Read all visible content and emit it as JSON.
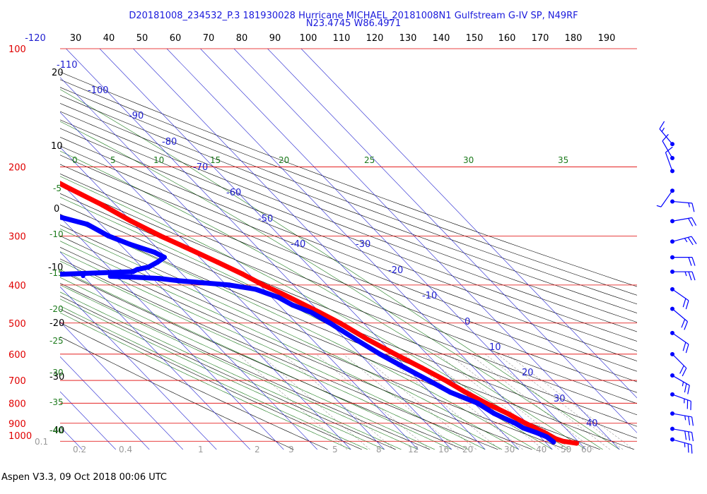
{
  "header": {
    "title_line1": "D20181008_234532_P.3 181930028 Hurricane MICHAEL_20181008N1 Gulfstream G-IV SP, N49RF",
    "title_line2": "N23.4745 W86.4971"
  },
  "footer": {
    "text": "Aspen V3.3, 09 Oct 2018  00:06 UTC"
  },
  "colors": {
    "isobar": "#e00000",
    "isotherm": "#2020d0",
    "dry_adiabat": "#000000",
    "moist_adiabat": "#1c7a1c",
    "mixing_ratio": "#9a9a9a",
    "temperature": "#ff0000",
    "dewpoint": "#0000ff",
    "wind": "#0000ff"
  },
  "chart_data": {
    "type": "skew-t",
    "pressure_levels": [
      100,
      200,
      300,
      400,
      500,
      600,
      700,
      800,
      900,
      1000
    ],
    "top_scale_labels": [
      "-120",
      "30",
      "40",
      "50",
      "60",
      "70",
      "80",
      "90",
      "100",
      "110",
      "120",
      "130",
      "140",
      "150",
      "160",
      "170",
      "180",
      "190"
    ],
    "isotherm_labels": [
      {
        "t": -110,
        "text": "-110"
      },
      {
        "t": -100,
        "text": "-100"
      },
      {
        "t": -90,
        "text": "-90"
      },
      {
        "t": -80,
        "text": "-80"
      },
      {
        "t": -70,
        "text": "-70"
      },
      {
        "t": -60,
        "text": "-60"
      },
      {
        "t": -50,
        "text": "-50"
      },
      {
        "t": -40,
        "text": "-40"
      },
      {
        "t": -30,
        "text": "-30"
      },
      {
        "t": -20,
        "text": "-20"
      },
      {
        "t": -10,
        "text": "-10"
      },
      {
        "t": 0,
        "text": "0"
      },
      {
        "t": 10,
        "text": "10"
      },
      {
        "t": 20,
        "text": "20"
      },
      {
        "t": 30,
        "text": "30"
      },
      {
        "t": 40,
        "text": "40"
      }
    ],
    "dry_adiabat_labels": [
      "20",
      "10",
      "0",
      "-10",
      "-20",
      "-30",
      "-40"
    ],
    "moist_adiabat_labels": [
      "0",
      "5",
      "10",
      "15",
      "20",
      "25",
      "30",
      "35",
      "-5",
      "-10",
      "-15",
      "-20",
      "-25",
      "-30",
      "-35",
      "-40"
    ],
    "mixing_ratio_labels": [
      "0.1",
      "0.2",
      "0.4",
      "1",
      "2",
      "3",
      "5",
      "8",
      "12",
      "16",
      "20",
      "30",
      "40",
      "50",
      "60"
    ],
    "temperature_profile": [
      {
        "p": 1012,
        "t": 29.0
      },
      {
        "p": 1000,
        "t": 25.5
      },
      {
        "p": 985,
        "t": 24.0
      },
      {
        "p": 950,
        "t": 22.5
      },
      {
        "p": 900,
        "t": 19.5
      },
      {
        "p": 850,
        "t": 17.0
      },
      {
        "p": 800,
        "t": 13.5
      },
      {
        "p": 750,
        "t": 10.5
      },
      {
        "p": 700,
        "t": 8.0
      },
      {
        "p": 650,
        "t": 4.5
      },
      {
        "p": 600,
        "t": 0.5
      },
      {
        "p": 550,
        "t": -3.5
      },
      {
        "p": 500,
        "t": -7.0
      },
      {
        "p": 470,
        "t": -10.0
      },
      {
        "p": 440,
        "t": -13.5
      },
      {
        "p": 420,
        "t": -16.0
      },
      {
        "p": 400,
        "t": -19.0
      },
      {
        "p": 375,
        "t": -22.0
      },
      {
        "p": 350,
        "t": -26.0
      },
      {
        "p": 325,
        "t": -30.5
      },
      {
        "p": 300,
        "t": -35.5
      },
      {
        "p": 275,
        "t": -40.0
      },
      {
        "p": 250,
        "t": -44.0
      },
      {
        "p": 225,
        "t": -49.5
      },
      {
        "p": 200,
        "t": -55.0
      },
      {
        "p": 180,
        "t": -58.5
      },
      {
        "p": 162,
        "t": -63.0
      }
    ],
    "temperature_extra_point": {
      "p": 153,
      "t": -68.0
    },
    "dewpoint_profile": [
      {
        "p": 1005,
        "t": 22.5
      },
      {
        "p": 975,
        "t": 22.0
      },
      {
        "p": 950,
        "t": 20.0
      },
      {
        "p": 925,
        "t": 17.5
      },
      {
        "p": 900,
        "t": 16.5
      },
      {
        "p": 850,
        "t": 13.0
      },
      {
        "p": 800,
        "t": 11.0
      },
      {
        "p": 750,
        "t": 6.0
      },
      {
        "p": 700,
        "t": 3.0
      },
      {
        "p": 650,
        "t": -0.5
      },
      {
        "p": 600,
        "t": -4.0
      },
      {
        "p": 550,
        "t": -7.0
      },
      {
        "p": 500,
        "t": -10.0
      },
      {
        "p": 470,
        "t": -12.5
      },
      {
        "p": 450,
        "t": -16.0
      },
      {
        "p": 430,
        "t": -18.0
      },
      {
        "p": 410,
        "t": -22.5
      },
      {
        "p": 400,
        "t": -29.0
      },
      {
        "p": 395,
        "t": -36.0
      },
      {
        "p": 390,
        "t": -43.0
      },
      {
        "p": 385,
        "t": -48.0
      },
      {
        "p": 382,
        "t": -55.0
      },
      {
        "p": 380,
        "t": -62.0
      },
      {
        "p": 379,
        "t": -70.0
      },
      {
        "p": 378,
        "t": -78.0
      },
      {
        "p": 378,
        "t": -86.0
      },
      {
        "p": 370,
        "t": -54.0
      },
      {
        "p": 365,
        "t": -52.0
      },
      {
        "p": 360,
        "t": -48.0
      },
      {
        "p": 350,
        "t": -44.0
      },
      {
        "p": 340,
        "t": -40.5
      },
      {
        "p": 330,
        "t": -42.0
      },
      {
        "p": 315,
        "t": -47.0
      },
      {
        "p": 300,
        "t": -51.0
      },
      {
        "p": 280,
        "t": -54.0
      },
      {
        "p": 265,
        "t": -62.0
      },
      {
        "p": 255,
        "t": -70.0
      },
      {
        "p": 245,
        "t": -74.0
      },
      {
        "p": 230,
        "t": -72.0
      },
      {
        "p": 215,
        "t": -69.0
      },
      {
        "p": 205,
        "t": -71.0
      },
      {
        "p": 197,
        "t": -71.5
      }
    ],
    "wind_barbs": [
      {
        "p": 175,
        "dir": 320,
        "spd": 15
      },
      {
        "p": 190,
        "dir": 330,
        "spd": 10
      },
      {
        "p": 205,
        "dir": 340,
        "spd": 10
      },
      {
        "p": 230,
        "dir": 215,
        "spd": 5
      },
      {
        "p": 245,
        "dir": 95,
        "spd": 15
      },
      {
        "p": 275,
        "dir": 80,
        "spd": 20
      },
      {
        "p": 310,
        "dir": 75,
        "spd": 25
      },
      {
        "p": 340,
        "dir": 90,
        "spd": 20
      },
      {
        "p": 370,
        "dir": 90,
        "spd": 25
      },
      {
        "p": 410,
        "dir": 125,
        "spd": 20
      },
      {
        "p": 460,
        "dir": 130,
        "spd": 20
      },
      {
        "p": 530,
        "dir": 125,
        "spd": 20
      },
      {
        "p": 600,
        "dir": 135,
        "spd": 20
      },
      {
        "p": 680,
        "dir": 120,
        "spd": 25
      },
      {
        "p": 760,
        "dir": 110,
        "spd": 25
      },
      {
        "p": 850,
        "dir": 100,
        "spd": 25
      },
      {
        "p": 930,
        "dir": 100,
        "spd": 30
      },
      {
        "p": 990,
        "dir": 105,
        "spd": 25
      }
    ]
  }
}
